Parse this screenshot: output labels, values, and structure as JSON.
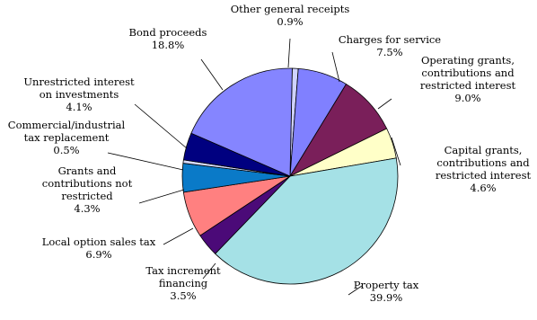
{
  "chart_data": {
    "type": "pie",
    "title": "",
    "slices": [
      {
        "label_lines": [
          "Other general receipts"
        ],
        "pct_text": "0.9%",
        "value": 0.9,
        "color": "#cfd2ff"
      },
      {
        "label_lines": [
          "Charges for service"
        ],
        "pct_text": "7.5%",
        "value": 7.5,
        "color": "#8080ff"
      },
      {
        "label_lines": [
          "Operating grants,",
          "contributions and",
          "restricted interest"
        ],
        "pct_text": "9.0%",
        "value": 9.0,
        "color": "#7a1f5a"
      },
      {
        "label_lines": [
          "Capital grants,",
          "contributions and",
          "restricted interest"
        ],
        "pct_text": "4.6%",
        "value": 4.6,
        "color": "#ffffc8"
      },
      {
        "label_lines": [
          "Property tax"
        ],
        "pct_text": "39.9%",
        "value": 39.9,
        "color": "#a5e1e6"
      },
      {
        "label_lines": [
          "Tax increment",
          "financing"
        ],
        "pct_text": "3.5%",
        "value": 3.5,
        "color": "#4b0a78"
      },
      {
        "label_lines": [
          "Local option sales tax"
        ],
        "pct_text": "6.9%",
        "value": 6.9,
        "color": "#ff8080"
      },
      {
        "label_lines": [
          "Grants and",
          "contributions not",
          "restricted"
        ],
        "pct_text": "4.3%",
        "value": 4.3,
        "color": "#0a7ac8"
      },
      {
        "label_lines": [
          "Commercial/industrial",
          "tax replacement"
        ],
        "pct_text": "0.5%",
        "value": 0.5,
        "color": "#d8dcff"
      },
      {
        "label_lines": [
          "Unrestricted interest",
          "on investments"
        ],
        "pct_text": "4.1%",
        "value": 4.1,
        "color": "#000080"
      },
      {
        "label_lines": [
          "Bond proceeds"
        ],
        "pct_text": "18.8%",
        "value": 18.8,
        "color": "#8585ff"
      }
    ]
  }
}
